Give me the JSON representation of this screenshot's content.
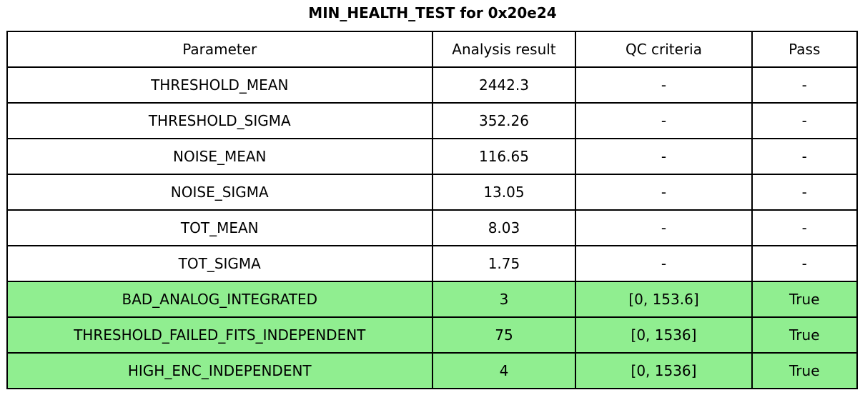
{
  "title": "MIN_HEALTH_TEST for 0x20e24",
  "colors": {
    "highlight_row_bg": "#90EE90",
    "row_bg": "#FFFFFF",
    "border": "#000000",
    "text": "#000000"
  },
  "chart_data": {
    "type": "table",
    "title": "MIN_HEALTH_TEST for 0x20e24",
    "columns": [
      "Parameter",
      "Analysis result",
      "QC criteria",
      "Pass"
    ],
    "rows": [
      [
        "THRESHOLD_MEAN",
        "2442.3",
        "-",
        "-"
      ],
      [
        "THRESHOLD_SIGMA",
        "352.26",
        "-",
        "-"
      ],
      [
        "NOISE_MEAN",
        "116.65",
        "-",
        "-"
      ],
      [
        "NOISE_SIGMA",
        "13.05",
        "-",
        "-"
      ],
      [
        "TOT_MEAN",
        "8.03",
        "-",
        "-"
      ],
      [
        "TOT_SIGMA",
        "1.75",
        "-",
        "-"
      ],
      [
        "BAD_ANALOG_INTEGRATED",
        "3",
        "[0, 153.6]",
        "True"
      ],
      [
        "THRESHOLD_FAILED_FITS_INDEPENDENT",
        "75",
        "[0, 1536]",
        "True"
      ],
      [
        "HIGH_ENC_INDEPENDENT",
        "4",
        "[0, 1536]",
        "True"
      ]
    ],
    "highlighted_rows": [
      6,
      7,
      8
    ],
    "highlight_color": "#90EE90",
    "grid": true,
    "legend": false
  }
}
